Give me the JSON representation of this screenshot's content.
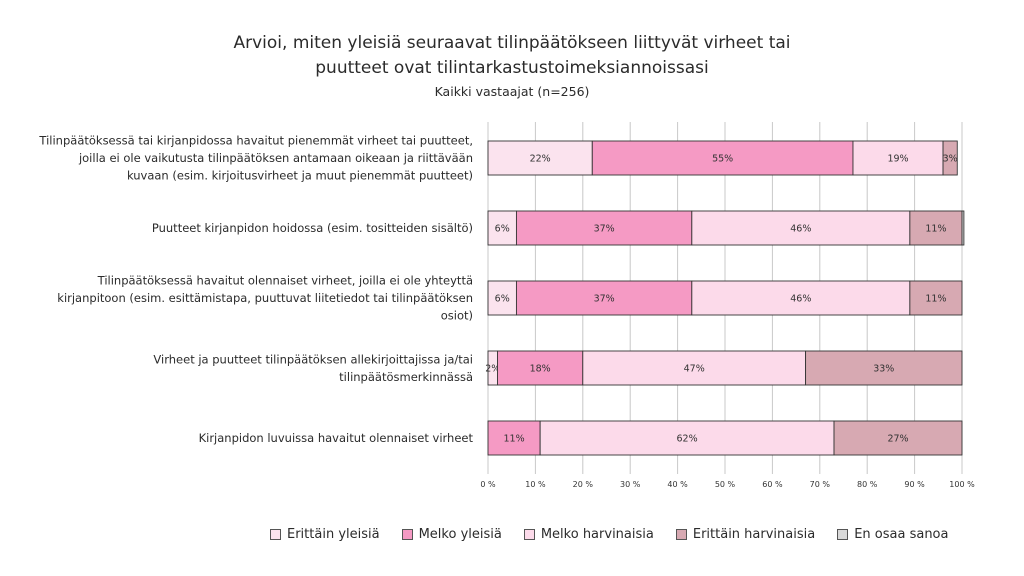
{
  "chart_data": {
    "type": "bar",
    "orientation": "horizontal",
    "stacked": true,
    "title": "Arvioi, miten yleisiä seuraavat tilinpäätökseen liittyvät virheet tai",
    "title_line2": "puutteet ovat tilintarkastustoimeksiannoissasi",
    "subtitle": "Kaikki vastaajat (n=256)",
    "xlim": [
      0,
      100
    ],
    "xticks": [
      "0 %",
      "10 %",
      "20 %",
      "30 %",
      "40 %",
      "50 %",
      "60 %",
      "70 %",
      "80 %",
      "90 %",
      "100 %"
    ],
    "categories": [
      [
        "Tilinpäätöksessä tai kirjanpidossa havaitut pienemmät virheet tai puutteet,",
        "joilla ei ole vaikutusta tilinpäätöksen antamaan oikeaan ja riittävään",
        "kuvaan (esim. kirjoitusvirheet ja muut pienemmät puutteet)"
      ],
      [
        "Puutteet kirjanpidon hoidossa (esim. tositteiden sisältö)"
      ],
      [
        "Tilinpäätöksessä havaitut olennaiset virheet, joilla ei ole yhteyttä",
        "kirjanpitoon (esim. esittämistapa, puuttuvat liitetiedot tai tilinpäätöksen",
        "osiot)"
      ],
      [
        "Virheet ja puutteet tilinpäätöksen allekirjoittajissa ja/tai",
        "tilinpäätösmerkinnässä"
      ],
      [
        "Kirjanpidon luvuissa havaitut olennaiset virheet"
      ]
    ],
    "series": [
      {
        "name": "Erittäin yleisiä",
        "color": "#fbe3ee",
        "values": [
          22,
          6,
          6,
          2,
          0
        ],
        "labels": [
          "22%",
          "6%",
          "6%",
          "2%",
          ""
        ]
      },
      {
        "name": "Melko yleisiä",
        "color": "#f59ac4",
        "values": [
          55,
          37,
          37,
          18,
          11
        ],
        "labels": [
          "55%",
          "37%",
          "37%",
          "18%",
          "11%"
        ]
      },
      {
        "name": "Melko harvinaisia",
        "color": "#fcdaea",
        "values": [
          19,
          46,
          46,
          47,
          62
        ],
        "labels": [
          "19%",
          "46%",
          "46%",
          "47%",
          "62%"
        ]
      },
      {
        "name": "Erittäin harvinaisia",
        "color": "#d7a9b2",
        "values": [
          3,
          11,
          11,
          33,
          27
        ],
        "labels": [
          "3%",
          "11%",
          "11%",
          "33%",
          "27%"
        ]
      },
      {
        "name": "En osaa sanoa",
        "color": "#d9d9d9",
        "values": [
          0,
          0.4,
          0,
          0,
          0
        ],
        "labels": [
          "",
          "",
          "",
          "",
          ""
        ]
      }
    ]
  }
}
